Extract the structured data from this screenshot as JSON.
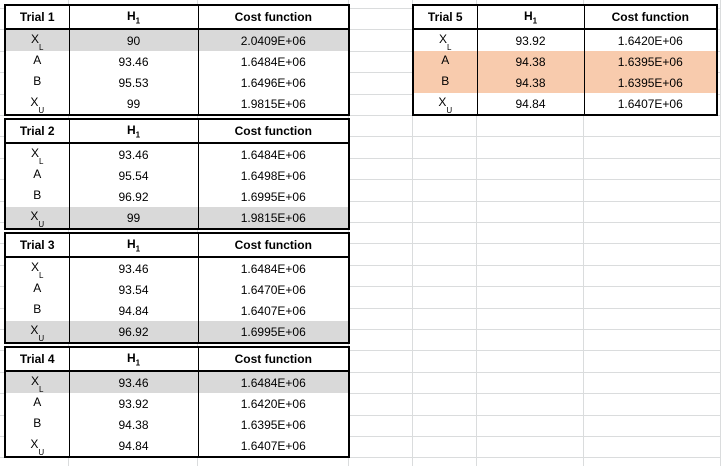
{
  "column_headers": {
    "variable": "H",
    "variable_subscript": "1",
    "cost": "Cost function"
  },
  "trials": [
    {
      "title": "Trial 1",
      "rows": [
        {
          "label": "X",
          "sub": "L",
          "h1": "90",
          "cost": "2.0409E+06",
          "highlight": "gray"
        },
        {
          "label": "A",
          "sub": "",
          "h1": "93.46",
          "cost": "1.6484E+06",
          "highlight": ""
        },
        {
          "label": "B",
          "sub": "",
          "h1": "95.53",
          "cost": "1.6496E+06",
          "highlight": ""
        },
        {
          "label": "X",
          "sub": "U",
          "h1": "99",
          "cost": "1.9815E+06",
          "highlight": ""
        }
      ]
    },
    {
      "title": "Trial 2",
      "rows": [
        {
          "label": "X",
          "sub": "L",
          "h1": "93.46",
          "cost": "1.6484E+06",
          "highlight": ""
        },
        {
          "label": "A",
          "sub": "",
          "h1": "95.54",
          "cost": "1.6498E+06",
          "highlight": ""
        },
        {
          "label": "B",
          "sub": "",
          "h1": "96.92",
          "cost": "1.6995E+06",
          "highlight": ""
        },
        {
          "label": "X",
          "sub": "U",
          "h1": "99",
          "cost": "1.9815E+06",
          "highlight": "gray"
        }
      ]
    },
    {
      "title": "Trial 3",
      "rows": [
        {
          "label": "X",
          "sub": "L",
          "h1": "93.46",
          "cost": "1.6484E+06",
          "highlight": ""
        },
        {
          "label": "A",
          "sub": "",
          "h1": "93.54",
          "cost": "1.6470E+06",
          "highlight": ""
        },
        {
          "label": "B",
          "sub": "",
          "h1": "94.84",
          "cost": "1.6407E+06",
          "highlight": ""
        },
        {
          "label": "X",
          "sub": "U",
          "h1": "96.92",
          "cost": "1.6995E+06",
          "highlight": "gray"
        }
      ]
    },
    {
      "title": "Trial 4",
      "rows": [
        {
          "label": "X",
          "sub": "L",
          "h1": "93.46",
          "cost": "1.6484E+06",
          "highlight": "gray"
        },
        {
          "label": "A",
          "sub": "",
          "h1": "93.92",
          "cost": "1.6420E+06",
          "highlight": ""
        },
        {
          "label": "B",
          "sub": "",
          "h1": "94.38",
          "cost": "1.6395E+06",
          "highlight": ""
        },
        {
          "label": "X",
          "sub": "U",
          "h1": "94.84",
          "cost": "1.6407E+06",
          "highlight": ""
        }
      ]
    },
    {
      "title": "Trial 5",
      "rows": [
        {
          "label": "X",
          "sub": "L",
          "h1": "93.92",
          "cost": "1.6420E+06",
          "highlight": ""
        },
        {
          "label": "A",
          "sub": "",
          "h1": "94.38",
          "cost": "1.6395E+06",
          "highlight": "peach"
        },
        {
          "label": "B",
          "sub": "",
          "h1": "94.38",
          "cost": "1.6395E+06",
          "highlight": "peach"
        },
        {
          "label": "X",
          "sub": "U",
          "h1": "94.84",
          "cost": "1.6407E+06",
          "highlight": ""
        }
      ]
    }
  ],
  "colors": {
    "gray_highlight": "#d9d9d9",
    "peach_highlight": "#f8cbad",
    "gridline": "#dadcdd"
  }
}
